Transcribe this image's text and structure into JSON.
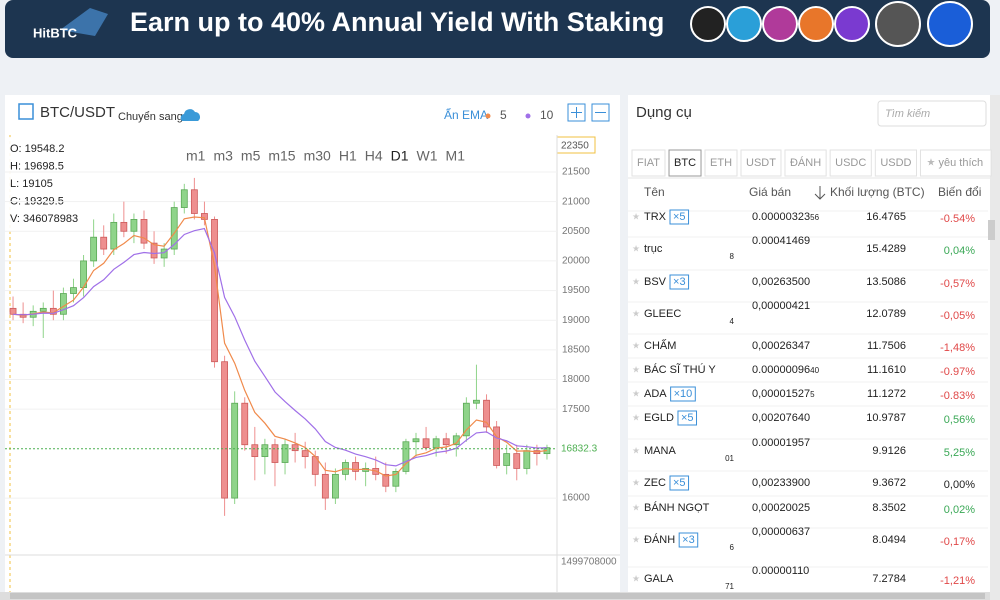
{
  "banner": {
    "logo": "HitBTC",
    "text": "Earn up to 40% Annual Yield With Staking"
  },
  "chart_panel": {
    "pair": "BTC/USDT",
    "switch": "Chuyển sang",
    "ema_toggle": "Ẩn EMA",
    "timeframes": [
      "m1",
      "m3",
      "m5",
      "m15",
      "m30",
      "H1",
      "H4",
      "D1",
      "W1",
      "M1"
    ],
    "active_timeframe": 7,
    "ohlc": [
      "O: 19548.2",
      "H: 19698.5",
      "L: 19105",
      "C: 19329.5",
      "V: 346078983"
    ],
    "crosshair_label": "22350",
    "volume_label": "1499708000"
  },
  "chart_data": {
    "type": "candlestick",
    "ylim": [
      15040,
      22090
    ],
    "yticks": [
      16000,
      17500,
      18000,
      18500,
      19000,
      19500,
      20000,
      20500,
      21000,
      21500
    ],
    "grid": true,
    "up_color": "#8fd48a",
    "down_color": "#ee8f8f",
    "open": [
      19200,
      19100,
      19050,
      19150,
      19200,
      19100,
      19450,
      19550,
      20000,
      20400,
      20200,
      20650,
      20500,
      20700,
      20300,
      20050,
      20200,
      20900,
      21200,
      20800,
      20700,
      18300,
      16000,
      17600,
      16900,
      16700,
      16900,
      16600,
      16900,
      16800,
      16700,
      16400,
      16000,
      16400,
      16600,
      16450,
      16500,
      16400,
      16200,
      16450,
      16950,
      17000,
      16850,
      17000,
      16900,
      17050,
      17600,
      17650,
      17200,
      16550,
      16750,
      16500,
      16800,
      16750
    ],
    "high": [
      19400,
      19300,
      19250,
      19300,
      19500,
      19550,
      19700,
      20100,
      20700,
      20600,
      20800,
      21000,
      20800,
      20850,
      20500,
      20300,
      21000,
      21300,
      21400,
      21000,
      20750,
      18400,
      17800,
      17700,
      17200,
      17000,
      17000,
      17000,
      17100,
      16950,
      16800,
      16600,
      16500,
      16650,
      16700,
      16600,
      16700,
      16600,
      16500,
      17000,
      17100,
      17200,
      17050,
      17100,
      17100,
      17700,
      18250,
      17750,
      17300,
      16900,
      16900,
      16900,
      16900,
      16900
    ],
    "low": [
      19000,
      18950,
      18900,
      18700,
      19000,
      19000,
      19300,
      19400,
      19900,
      20100,
      20100,
      20400,
      20300,
      20200,
      19950,
      19900,
      20100,
      20800,
      20700,
      20600,
      18200,
      15700,
      15900,
      16800,
      16300,
      16400,
      16200,
      16400,
      16600,
      16500,
      16200,
      15800,
      15900,
      16300,
      16300,
      16200,
      16300,
      16100,
      16100,
      16400,
      16700,
      16800,
      16700,
      16750,
      16700,
      16950,
      17500,
      17100,
      16500,
      16400,
      16300,
      16400,
      16550,
      16650
    ],
    "close": [
      19100,
      19050,
      19150,
      19200,
      19100,
      19450,
      19550,
      20000,
      20400,
      20200,
      20650,
      20500,
      20700,
      20300,
      20050,
      20200,
      20900,
      21200,
      20800,
      20700,
      18300,
      16000,
      17600,
      16900,
      16700,
      16900,
      16600,
      16900,
      16800,
      16700,
      16400,
      16000,
      16400,
      16600,
      16450,
      16500,
      16400,
      16200,
      16450,
      16950,
      17000,
      16850,
      17000,
      16900,
      17050,
      17600,
      17650,
      17200,
      16550,
      16750,
      16500,
      16800,
      16750,
      16850
    ],
    "series": [
      {
        "name": "5",
        "color": "#f08a4b",
        "values": [
          19100,
          19083,
          19106,
          19137,
          19125,
          19233,
          19339,
          19559,
          19839,
          19959,
          20189,
          20293,
          20429,
          20386,
          20274,
          20249,
          20466,
          20711,
          20741,
          20727,
          19918,
          18612,
          18275,
          17817,
          17445,
          17263,
          17042,
          16995,
          16930,
          16853,
          16702,
          16468,
          16445,
          16497,
          16481,
          16487,
          16458,
          16372,
          16398,
          16582,
          16721,
          16764,
          16843,
          16862,
          16925,
          17150,
          17317,
          17278,
          17035,
          16940,
          16793,
          16795,
          16780,
          16803
        ]
      },
      {
        "name": "10",
        "color": "#a070e8",
        "values": [
          19100,
          19091,
          19102,
          19120,
          19116,
          19177,
          19245,
          19382,
          19567,
          19682,
          19858,
          19975,
          20107,
          20142,
          20125,
          20139,
          20277,
          20445,
          20510,
          20545,
          20137,
          19384,
          19060,
          18667,
          18309,
          18053,
          17789,
          17627,
          17477,
          17336,
          17166,
          16954,
          16853,
          16807,
          16742,
          16698,
          16644,
          16563,
          16542,
          16616,
          16686,
          16716,
          16768,
          16792,
          16839,
          16977,
          17099,
          17117,
          17014,
          16966,
          16881,
          16866,
          16845,
          16846
        ]
      }
    ],
    "last_price": 16832.3,
    "last_color": "#4caf50"
  },
  "tools": {
    "title": "Dụng cụ",
    "search_placeholder": "Tìm kiếm",
    "tabs": [
      "FIAT",
      "BTC",
      "ETH",
      "USDT",
      "ĐÁNH",
      "USDC",
      "USDD",
      "yêu thích"
    ],
    "active_tab": 1,
    "columns": [
      "Tên",
      "Giá bán",
      "Khối lượng (BTC)",
      "Biến đổi"
    ],
    "rows": [
      {
        "name": "TRX",
        "badge": "×5",
        "price": "0.00000323",
        "price_small": "56",
        "volume": "16.4765",
        "change": "-0.54%"
      },
      {
        "name": "trục",
        "price": "0.00041469",
        "price_sub": "8",
        "volume": "15.4289",
        "change": "0,04%"
      },
      {
        "name": "BSV",
        "badge": "×3",
        "price": "0,00263500",
        "volume": "13.5086",
        "change": "-0,57%"
      },
      {
        "name": "GLEEC",
        "price": "0,00000421",
        "price_sub": "4",
        "volume": "12.0789",
        "change": "-0,05%"
      },
      {
        "name": "CHẤM",
        "price": "0,00026347",
        "volume": "11.7506",
        "change": "-1,48%"
      },
      {
        "name": "BÁC SĨ THÚ Y",
        "price": "0.00000096",
        "price_small": "40",
        "volume": "11.1610",
        "change": "-0.97%"
      },
      {
        "name": "ADA",
        "badge": "×10",
        "price": "0,00001527",
        "price_small": "5",
        "volume": "11.1272",
        "change": "-0.83%"
      },
      {
        "name": "EGLD",
        "badge": "×5",
        "price": "0,00207640",
        "volume": "10.9787",
        "change": "0,56%"
      },
      {
        "name": "MANA",
        "price": "0.00001957",
        "price_sub": "01",
        "volume": "9.9126",
        "change": "5,25%"
      },
      {
        "name": "ZEC",
        "badge": "×5",
        "price": "0,00233900",
        "volume": "9.3672",
        "change": "0,00%"
      },
      {
        "name": "BÁNH NGỌT",
        "price": "0,00020025",
        "volume": "8.3502",
        "change": "0,02%"
      },
      {
        "name": "ĐÁNH",
        "badge": "×3",
        "price": "0,00000637",
        "price_sub": "6",
        "volume": "8.0494",
        "change": "-0,17%"
      },
      {
        "name": "GALA",
        "price": "0.00000110",
        "price_sub": "71",
        "volume": "7.2784",
        "change": "-1,21%"
      }
    ]
  }
}
